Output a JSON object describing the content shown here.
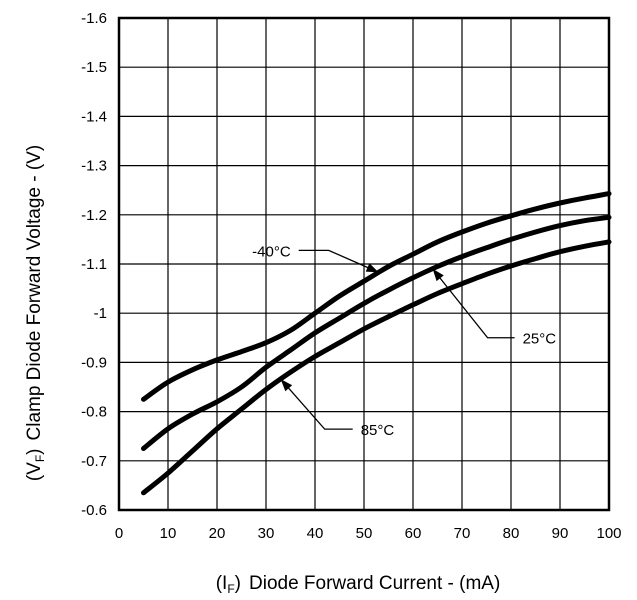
{
  "chart_data": {
    "type": "line",
    "xlabel": {
      "paren": "(I",
      "sub": "F",
      "close": ")",
      "text": "Diode Forward Current - (mA)"
    },
    "ylabel": {
      "paren": "(V",
      "sub": "F",
      "close": ")",
      "text": "Clamp Diode Forward Voltage - (V)"
    },
    "xlim": [
      0,
      100
    ],
    "ylim": [
      -0.6,
      -1.6
    ],
    "grid": true,
    "x_ticks": [
      "0",
      "10",
      "20",
      "30",
      "40",
      "50",
      "60",
      "70",
      "80",
      "90",
      "100"
    ],
    "y_ticks": [
      "-0.6",
      "-0.7",
      "-0.8",
      "-0.9",
      "-1",
      "-1.1",
      "-1.2",
      "-1.3",
      "-1.4",
      "-1.5",
      "-1.6"
    ],
    "series": [
      {
        "name": "-40°C",
        "x": [
          5,
          10,
          15,
          20,
          25,
          30,
          35,
          40,
          45,
          50,
          55,
          60,
          65,
          70,
          75,
          80,
          85,
          90,
          95,
          100
        ],
        "y": [
          -0.825,
          -0.86,
          -0.885,
          -0.905,
          -0.922,
          -0.94,
          -0.965,
          -1.0,
          -1.035,
          -1.065,
          -1.095,
          -1.12,
          -1.145,
          -1.165,
          -1.183,
          -1.198,
          -1.212,
          -1.224,
          -1.234,
          -1.243
        ]
      },
      {
        "name": "25°C",
        "x": [
          5,
          10,
          15,
          20,
          25,
          30,
          35,
          40,
          45,
          50,
          55,
          60,
          65,
          70,
          75,
          80,
          85,
          90,
          95,
          100
        ],
        "y": [
          -0.725,
          -0.765,
          -0.795,
          -0.82,
          -0.85,
          -0.89,
          -0.925,
          -0.96,
          -0.99,
          -1.02,
          -1.047,
          -1.072,
          -1.095,
          -1.115,
          -1.133,
          -1.15,
          -1.165,
          -1.178,
          -1.188,
          -1.195
        ]
      },
      {
        "name": "85°C",
        "x": [
          5,
          10,
          15,
          20,
          25,
          30,
          35,
          40,
          45,
          50,
          55,
          60,
          65,
          70,
          75,
          80,
          85,
          90,
          95,
          100
        ],
        "y": [
          -0.635,
          -0.675,
          -0.72,
          -0.765,
          -0.805,
          -0.845,
          -0.88,
          -0.912,
          -0.94,
          -0.968,
          -0.993,
          -1.017,
          -1.04,
          -1.06,
          -1.079,
          -1.096,
          -1.111,
          -1.125,
          -1.136,
          -1.145
        ]
      }
    ],
    "annotations": [
      {
        "text": "-40°C",
        "series": 0,
        "x": 53
      },
      {
        "text": "25°C",
        "series": 1,
        "x": 64
      },
      {
        "text": "85°C",
        "series": 2,
        "x": 33
      }
    ]
  }
}
